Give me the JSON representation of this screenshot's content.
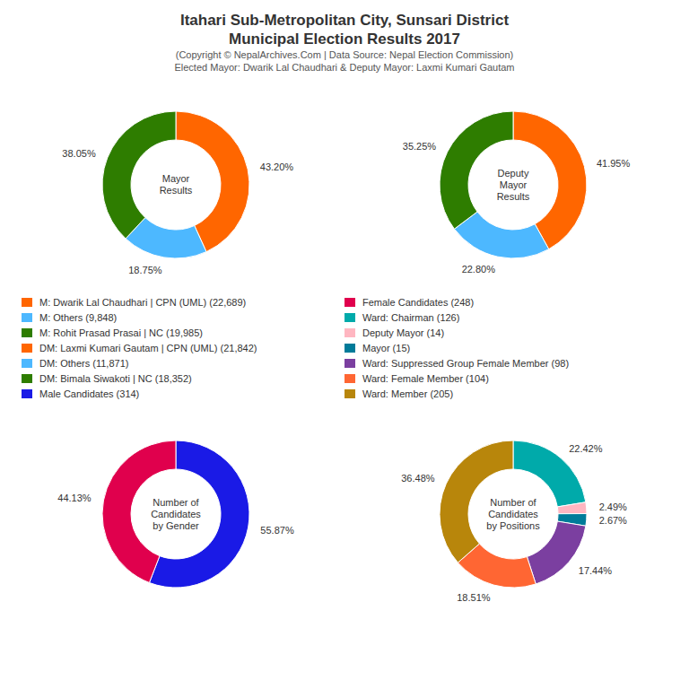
{
  "title": "Itahari Sub-Metropolitan City, Sunsari District\nMunicipal Election Results 2017",
  "subtitle": "(Copyright © NepalArchives.Com | Data Source: Nepal Election Commission)\nElected Mayor: Dwarik Lal Chaudhari & Deputy Mayor: Laxmi Kumari Gautam",
  "chart_data": [
    {
      "type": "pie",
      "title": "Mayor\nResults",
      "categories": [
        "M: Dwarik Lal Chaudhari | CPN (UML) (22,689)",
        "M: Others (9,848)",
        "M: Rohit Prasad Prasai | NC (19,985)"
      ],
      "values": [
        43.2,
        18.75,
        38.05
      ],
      "value_labels": [
        "43.20%",
        "18.75%",
        "38.05%"
      ],
      "colors": [
        "#FF6600",
        "#4DB8FF",
        "#2E7D00"
      ]
    },
    {
      "type": "pie",
      "title": "Deputy\nMayor\nResults",
      "categories": [
        "DM: Laxmi Kumari Gautam | CPN (UML) (21,842)",
        "DM: Others (11,871)",
        "DM: Bimala Siwakoti | NC (18,352)"
      ],
      "values": [
        41.95,
        22.8,
        35.25
      ],
      "value_labels": [
        "41.95%",
        "22.80%",
        "35.25%"
      ],
      "colors": [
        "#FF6600",
        "#4DB8FF",
        "#2E7D00"
      ]
    },
    {
      "type": "pie",
      "title": "Number of\nCandidates\nby Gender",
      "categories": [
        "Male Candidates (314)",
        "Female Candidates (248)"
      ],
      "values": [
        55.87,
        44.13
      ],
      "value_labels": [
        "55.87%",
        "44.13%"
      ],
      "colors": [
        "#1A1AE6",
        "#E0004D"
      ]
    },
    {
      "type": "pie",
      "title": "Number of\nCandidates\nby Positions",
      "categories": [
        "Ward: Chairman (126)",
        "Deputy Mayor (14)",
        "Mayor (15)",
        "Ward: Suppressed Group Female Member (98)",
        "Ward: Female Member (104)",
        "Ward: Member (205)"
      ],
      "values": [
        22.42,
        2.49,
        2.67,
        17.44,
        18.51,
        36.48
      ],
      "value_labels": [
        "22.42%",
        "2.49%",
        "2.67%",
        "17.44%",
        "18.51%",
        "36.48%"
      ],
      "colors": [
        "#00AAAA",
        "#FFB6C1",
        "#007B99",
        "#7B3FA0",
        "#FF6633",
        "#B8860B"
      ]
    }
  ]
}
